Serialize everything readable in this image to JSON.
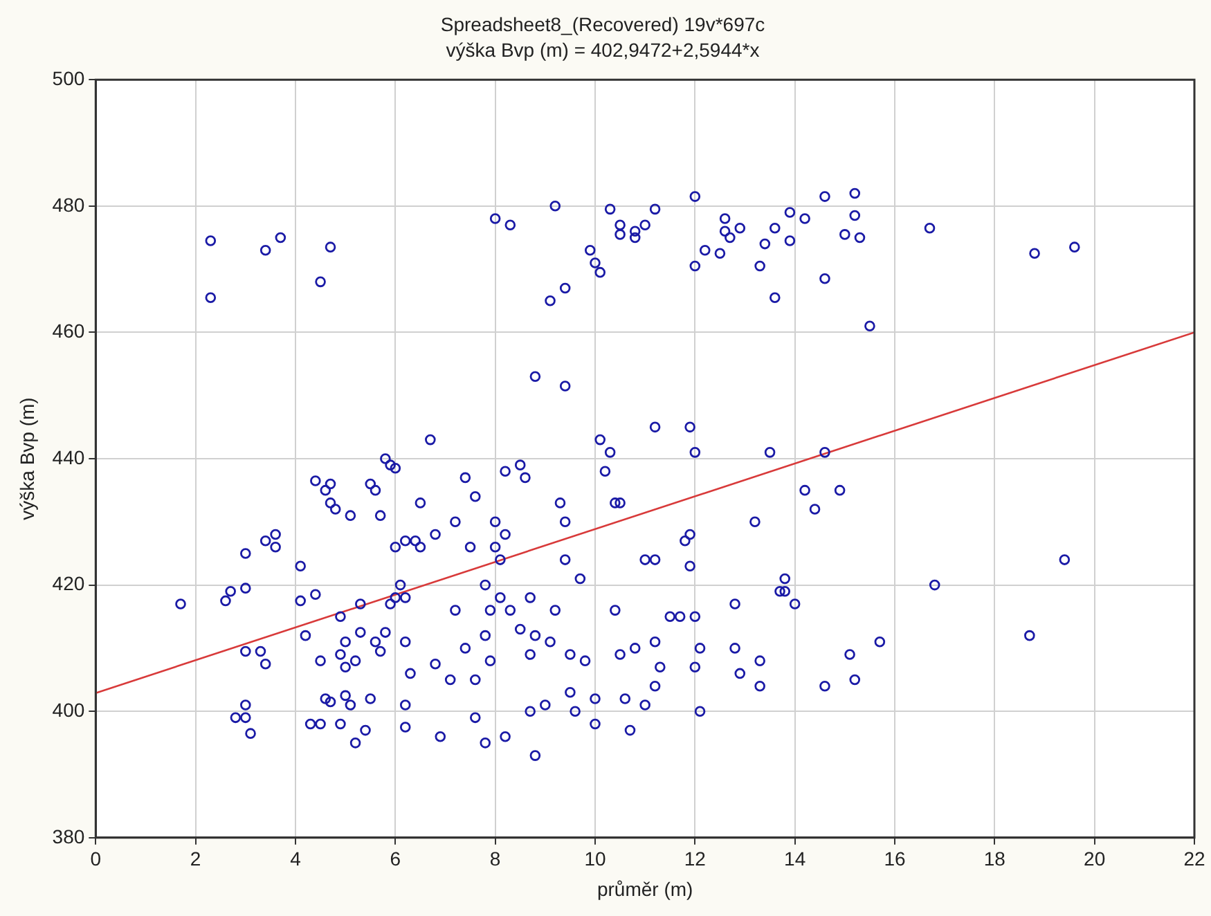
{
  "chart_data": {
    "type": "scatter",
    "title": "Spreadsheet8_(Recovered) 19v*697c",
    "subtitle": "výška Bvp (m) = 402,9472+2,5944*x",
    "xlabel": "průměr (m)",
    "ylabel": "výška Bvp (m)",
    "xlim": [
      0,
      22
    ],
    "xticks": [
      0,
      2,
      4,
      6,
      8,
      10,
      12,
      14,
      16,
      18,
      20,
      22
    ],
    "ylim": [
      380,
      500
    ],
    "yticks": [
      380,
      400,
      420,
      440,
      460,
      480,
      500
    ],
    "grid": true,
    "legend": false,
    "marker": "circle",
    "series": [
      {
        "type": "scatter",
        "color": "#1a1aa6",
        "x": [
          2.3,
          2.3,
          3.4,
          3.7,
          4.5,
          4.7,
          8.0,
          8.3,
          9.2,
          9.1,
          9.4,
          9.9,
          10.0,
          10.1,
          10.3,
          10.5,
          10.5,
          10.8,
          10.8,
          11.0,
          11.2,
          12.0,
          12.0,
          12.2,
          12.5,
          12.6,
          12.6,
          12.7,
          12.9,
          13.3,
          13.4,
          13.6,
          13.6,
          13.9,
          13.9,
          14.2,
          14.6,
          14.6,
          15.0,
          15.2,
          15.2,
          15.3,
          15.5,
          16.7,
          18.8,
          19.6,
          8.8,
          9.4,
          1.7,
          2.6,
          2.7,
          3.0,
          3.0,
          3.4,
          3.6,
          3.6,
          3.0,
          3.3,
          3.4,
          3.0,
          2.8,
          3.0,
          3.1,
          4.1,
          4.1,
          4.4,
          4.2,
          4.3,
          4.5,
          4.5,
          4.6,
          4.6,
          4.7,
          4.7,
          4.8,
          4.4,
          4.7,
          4.9,
          4.9,
          4.9,
          5.0,
          5.0,
          5.0,
          5.1,
          5.2,
          5.1,
          5.3,
          5.3,
          5.2,
          5.4,
          5.5,
          5.6,
          5.7,
          5.8,
          5.7,
          5.5,
          5.6,
          5.8,
          5.9,
          6.0,
          5.9,
          6.0,
          6.1,
          6.2,
          6.2,
          6.3,
          6.2,
          6.2,
          6.0,
          6.2,
          6.4,
          6.5,
          6.7,
          6.5,
          6.8,
          6.8,
          6.9,
          7.1,
          7.2,
          7.4,
          7.2,
          7.4,
          7.5,
          7.6,
          7.9,
          7.8,
          7.8,
          7.9,
          7.6,
          7.6,
          7.8,
          8.0,
          8.0,
          8.1,
          8.2,
          8.2,
          8.5,
          8.6,
          8.1,
          8.3,
          8.5,
          8.7,
          8.8,
          8.7,
          9.1,
          9.0,
          8.7,
          8.8,
          8.2,
          9.2,
          9.4,
          9.4,
          9.3,
          9.5,
          9.7,
          9.8,
          9.5,
          9.6,
          10.0,
          10.0,
          10.1,
          10.2,
          10.3,
          10.4,
          10.5,
          10.4,
          10.5,
          10.6,
          10.7,
          10.8,
          11.0,
          11.2,
          11.2,
          11.0,
          11.2,
          11.3,
          11.2,
          11.5,
          11.7,
          11.9,
          12.0,
          11.9,
          11.8,
          11.9,
          12.0,
          12.0,
          12.1,
          12.1,
          12.8,
          12.8,
          12.9,
          13.3,
          13.3,
          13.2,
          13.5,
          13.7,
          13.8,
          13.8,
          14.0,
          14.2,
          14.4,
          14.6,
          14.6,
          14.9,
          15.1,
          15.2,
          15.7,
          16.8,
          18.7,
          19.4
        ],
        "values": [
          474.5,
          465.5,
          473,
          475,
          468,
          473.5,
          478,
          477,
          480,
          465,
          467,
          473,
          471,
          469.5,
          479.5,
          477,
          475.5,
          476,
          475,
          477,
          479.5,
          481.5,
          470.5,
          473,
          472.5,
          476,
          478,
          475,
          476.5,
          470.5,
          474,
          465.5,
          476.5,
          479,
          474.5,
          478,
          481.5,
          468.5,
          475.5,
          482,
          478.5,
          475,
          461,
          476.5,
          472.5,
          473.5,
          453,
          451.5,
          417,
          417.5,
          419,
          419.5,
          425,
          427,
          428,
          426,
          409.5,
          409.5,
          407.5,
          401,
          399,
          399,
          396.5,
          423,
          417.5,
          418.5,
          412,
          398,
          398,
          408,
          402,
          435,
          436,
          433,
          432,
          436.5,
          401.5,
          398,
          409,
          415,
          411,
          407,
          402.5,
          401,
          408,
          431,
          412.5,
          417,
          395,
          397,
          402,
          411,
          409.5,
          412.5,
          431,
          436,
          435,
          440,
          439,
          438.5,
          417,
          418,
          420,
          418,
          411,
          406,
          401,
          397.5,
          426,
          427,
          427,
          426,
          443,
          433,
          428,
          407.5,
          396,
          405,
          416,
          410,
          430,
          437,
          426,
          434,
          416,
          420,
          412,
          408,
          405,
          399,
          395,
          430,
          426,
          424,
          428,
          438,
          439,
          437,
          418,
          416,
          413,
          418,
          412,
          409,
          411,
          401,
          400,
          393,
          396,
          416,
          424,
          430,
          433,
          409,
          421,
          408,
          403,
          400,
          398,
          402,
          443,
          438,
          441,
          433,
          433,
          416,
          409,
          402,
          397,
          410,
          424,
          424,
          445,
          401,
          404,
          407,
          411,
          415,
          415,
          445,
          441,
          428,
          427,
          423,
          415,
          407,
          400,
          410,
          417,
          410,
          406,
          408,
          404,
          430,
          441,
          419,
          421,
          419,
          417,
          435,
          432,
          441,
          404,
          435,
          409,
          405,
          411,
          420,
          412,
          424
        ]
      },
      {
        "type": "line",
        "color": "#d83a3a",
        "marker": "none",
        "x": [
          0,
          22
        ],
        "values": [
          402.9,
          460.0
        ]
      }
    ]
  }
}
